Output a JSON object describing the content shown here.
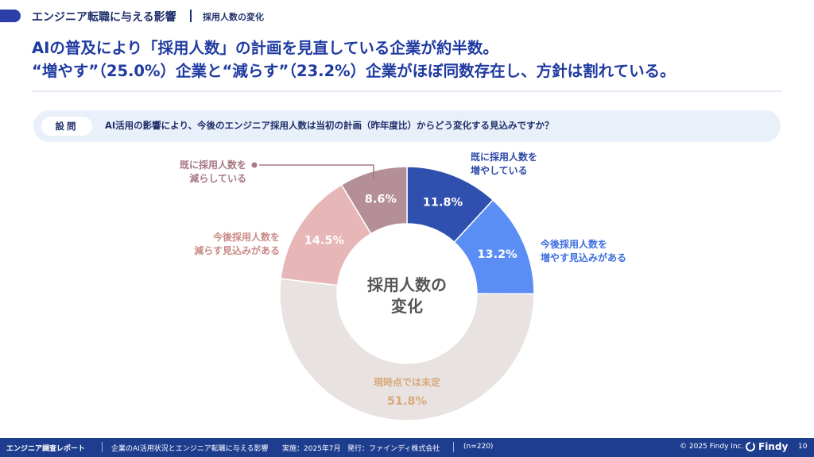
{
  "header": {
    "title": "エンジニア転職に与える影響",
    "subtitle": "採用人数の変化"
  },
  "headline": {
    "line1": "AIの普及により「採用人数」の計画を見直している企業が約半数。",
    "line2": "“増やす”（25.0%）企業と“減らす”（23.2%）企業がほぼ同数存在し、方針は割れている。"
  },
  "question": {
    "tag": "設問",
    "text": "AI活用の影響により、今後のエンジニア採用人数は当初の計画（昨年度比）からどう変化する見込みですか？"
  },
  "chart_data": {
    "type": "pie",
    "center_label": [
      "採用人数の",
      "変化"
    ],
    "slices": [
      {
        "label": [
          "既に採用人数を",
          "増やしている"
        ],
        "value": 11.8,
        "display": "11.8%",
        "color": "#3050b0",
        "label_color": "#2f4ba8"
      },
      {
        "label": [
          "今後採用人数を",
          "増やす見込みがある"
        ],
        "value": 13.2,
        "display": "13.2%",
        "color": "#5b8ef5",
        "label_color": "#3d6fe0"
      },
      {
        "label": [
          "現時点では未定"
        ],
        "value": 51.8,
        "display": "51.8%",
        "color": "#e8e3e0",
        "label_color": "#d9a87c"
      },
      {
        "label": [
          "今後採用人数を",
          "減らす見込みがある"
        ],
        "value": 14.5,
        "display": "14.5%",
        "color": "#e6b7b6",
        "label_color": "#c98b87"
      },
      {
        "label": [
          "既に採用人数を",
          "減らしている"
        ],
        "value": 8.6,
        "display": "8.6%",
        "color": "#b58f97",
        "label_color": "#a87884"
      }
    ]
  },
  "footer": {
    "report": "エンジニア調査レポート",
    "title": "企業のAI活用状況とエンジニア転職に与える影響",
    "date": "実施：2025年7月",
    "publisher": "発行：ファインディ株式会社",
    "n": "(n=220)",
    "copyright": "© 2025 Findy Inc.",
    "brand": "Findy",
    "page": "10"
  }
}
